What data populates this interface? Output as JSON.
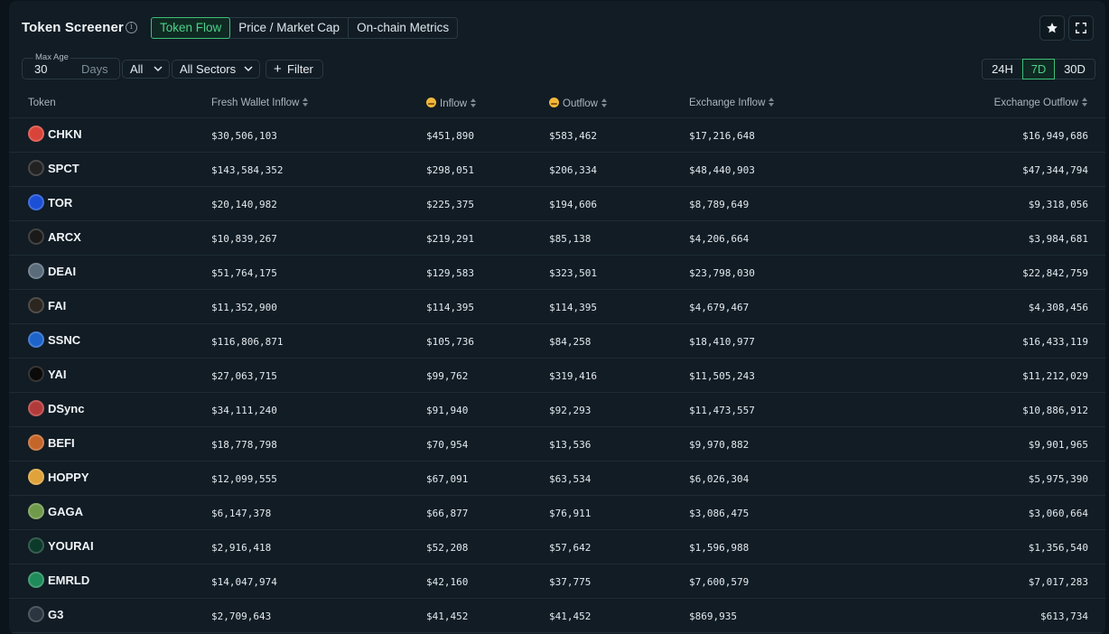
{
  "header": {
    "title": "Token Screener",
    "tabs": [
      {
        "label": "Token Flow",
        "active": true
      },
      {
        "label": "Price / Market Cap",
        "active": false
      },
      {
        "label": "On-chain Metrics",
        "active": false
      }
    ]
  },
  "controls": {
    "max_age_label": "Max Age",
    "max_age_value": "30",
    "max_age_unit": "Days",
    "chain_select": "All",
    "sector_select": "All Sectors",
    "filter_label": "Filter",
    "time_ranges": [
      {
        "label": "24H",
        "active": false
      },
      {
        "label": "7D",
        "active": true
      },
      {
        "label": "30D",
        "active": false
      }
    ]
  },
  "table": {
    "columns": {
      "token": "Token",
      "fresh": "Fresh Wallet Inflow",
      "inflow": "Inflow",
      "outflow": "Outflow",
      "exin": "Exchange Inflow",
      "exout": "Exchange Outflow"
    },
    "rows": [
      {
        "symbol": "CHKN",
        "logo_color": "#d9443a",
        "fresh": "$30,506,103",
        "inflow": "$451,890",
        "outflow": "$583,462",
        "exin": "$17,216,648",
        "exout": "$16,949,686"
      },
      {
        "symbol": "SPCT",
        "logo_color": "#222222",
        "fresh": "$143,584,352",
        "inflow": "$298,051",
        "outflow": "$206,334",
        "exin": "$48,440,903",
        "exout": "$47,344,794"
      },
      {
        "symbol": "TOR",
        "logo_color": "#1b4fd6",
        "fresh": "$20,140,982",
        "inflow": "$225,375",
        "outflow": "$194,606",
        "exin": "$8,789,649",
        "exout": "$9,318,056"
      },
      {
        "symbol": "ARCX",
        "logo_color": "#1a1a1a",
        "fresh": "$10,839,267",
        "inflow": "$219,291",
        "outflow": "$85,138",
        "exin": "$4,206,664",
        "exout": "$3,984,681"
      },
      {
        "symbol": "DEAI",
        "logo_color": "#5a6b7a",
        "fresh": "$51,764,175",
        "inflow": "$129,583",
        "outflow": "$323,501",
        "exin": "$23,798,030",
        "exout": "$22,842,759"
      },
      {
        "symbol": "FAI",
        "logo_color": "#2b2620",
        "fresh": "$11,352,900",
        "inflow": "$114,395",
        "outflow": "$114,395",
        "exin": "$4,679,467",
        "exout": "$4,308,456"
      },
      {
        "symbol": "SSNC",
        "logo_color": "#1e63c9",
        "fresh": "$116,806,871",
        "inflow": "$105,736",
        "outflow": "$84,258",
        "exin": "$18,410,977",
        "exout": "$16,433,119"
      },
      {
        "symbol": "YAI",
        "logo_color": "#0a0a0a",
        "fresh": "$27,063,715",
        "inflow": "$99,762",
        "outflow": "$319,416",
        "exin": "$11,505,243",
        "exout": "$11,212,029"
      },
      {
        "symbol": "DSync",
        "logo_color": "#b33a3a",
        "fresh": "$34,111,240",
        "inflow": "$91,940",
        "outflow": "$92,293",
        "exin": "$11,473,557",
        "exout": "$10,886,912"
      },
      {
        "symbol": "BEFI",
        "logo_color": "#c4662a",
        "fresh": "$18,778,798",
        "inflow": "$70,954",
        "outflow": "$13,536",
        "exin": "$9,970,882",
        "exout": "$9,901,965"
      },
      {
        "symbol": "HOPPY",
        "logo_color": "#e0a23a",
        "fresh": "$12,099,555",
        "inflow": "$67,091",
        "outflow": "$63,534",
        "exin": "$6,026,304",
        "exout": "$5,975,390"
      },
      {
        "symbol": "GAGA",
        "logo_color": "#6f9a4a",
        "fresh": "$6,147,378",
        "inflow": "$66,877",
        "outflow": "$76,911",
        "exin": "$3,086,475",
        "exout": "$3,060,664"
      },
      {
        "symbol": "YOURAI",
        "logo_color": "#0c3a2a",
        "fresh": "$2,916,418",
        "inflow": "$52,208",
        "outflow": "$57,642",
        "exin": "$1,596,988",
        "exout": "$1,356,540"
      },
      {
        "symbol": "EMRLD",
        "logo_color": "#1f8a5a",
        "fresh": "$14,047,974",
        "inflow": "$42,160",
        "outflow": "$37,775",
        "exin": "$7,600,579",
        "exout": "$7,017,283"
      },
      {
        "symbol": "G3",
        "logo_color": "#2a3540",
        "fresh": "$2,709,643",
        "inflow": "$41,452",
        "outflow": "$41,452",
        "exin": "$869,935",
        "exout": "$613,734"
      }
    ]
  }
}
